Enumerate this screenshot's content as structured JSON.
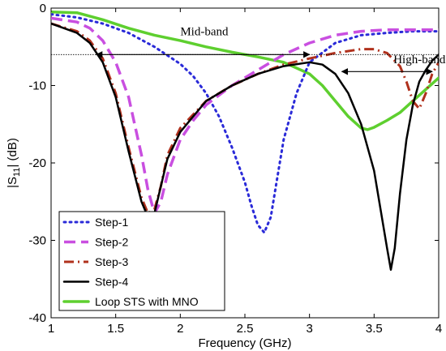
{
  "chart_data": {
    "type": "line",
    "xlabel": "Frequency (GHz)",
    "ylabel_main": "|S",
    "ylabel_sub": "11",
    "ylabel_tail": "| (dB)",
    "xlim": [
      1,
      4
    ],
    "ylim": [
      -40,
      0
    ],
    "x_ticks": [
      1,
      1.5,
      2,
      2.5,
      3,
      3.5,
      4
    ],
    "x_tick_labels": [
      "1",
      "1.5",
      "2",
      "2.5",
      "3",
      "3.5",
      "4"
    ],
    "y_ticks": [
      0,
      -10,
      -20,
      -30,
      -40
    ],
    "y_tick_labels": [
      "0",
      "-10",
      "-20",
      "-30",
      "-40"
    ],
    "grid": false,
    "legend_position": "bottom-left",
    "reference_line_db": -6,
    "annotations": [
      {
        "text": "Mid-band",
        "x": 2.0,
        "y": -3.5,
        "arrow_from": [
          1.35,
          -6
        ],
        "arrow_to": [
          3.0,
          -6
        ]
      },
      {
        "text": "High-band",
        "x": 3.65,
        "y": -7.1,
        "arrow_from": [
          3.25,
          -8.2
        ],
        "arrow_to": [
          3.95,
          -8.2
        ]
      }
    ],
    "series": [
      {
        "name": "Step-1",
        "color": "#2a2ad8",
        "dash": "dotted",
        "x": [
          1.0,
          1.2,
          1.4,
          1.6,
          1.8,
          2.0,
          2.1,
          2.2,
          2.3,
          2.4,
          2.5,
          2.55,
          2.6,
          2.65,
          2.7,
          2.75,
          2.8,
          2.9,
          3.0,
          3.2,
          3.4,
          3.6,
          3.8,
          4.0
        ],
        "y": [
          -0.8,
          -1.2,
          -2.0,
          -3.2,
          -5.0,
          -7.2,
          -8.8,
          -11.0,
          -14.0,
          -18.0,
          -22.5,
          -25.5,
          -28.0,
          -29.0,
          -27.0,
          -22.0,
          -17.0,
          -11.0,
          -7.0,
          -4.5,
          -3.5,
          -3.2,
          -3.0,
          -3.0
        ]
      },
      {
        "name": "Step-2",
        "color": "#c94fe0",
        "dash": "dashed",
        "x": [
          1.0,
          1.2,
          1.3,
          1.4,
          1.5,
          1.6,
          1.7,
          1.75,
          1.8,
          1.85,
          1.9,
          2.0,
          2.1,
          2.2,
          2.4,
          2.6,
          2.8,
          3.0,
          3.2,
          3.4,
          3.6,
          3.8,
          4.0
        ],
        "y": [
          -1.3,
          -1.8,
          -2.6,
          -4.2,
          -7.0,
          -11.5,
          -19.0,
          -23.5,
          -26.5,
          -25.0,
          -21.5,
          -17.0,
          -14.5,
          -12.5,
          -10.0,
          -8.0,
          -6.0,
          -4.5,
          -3.5,
          -3.0,
          -2.8,
          -2.8,
          -2.8
        ]
      },
      {
        "name": "Step-3",
        "color": "#b0311d",
        "dash": "dashdot",
        "x": [
          1.0,
          1.2,
          1.3,
          1.4,
          1.5,
          1.6,
          1.7,
          1.75,
          1.8,
          1.85,
          1.9,
          2.0,
          2.2,
          2.4,
          2.6,
          2.8,
          3.0,
          3.2,
          3.4,
          3.5,
          3.6,
          3.7,
          3.75,
          3.8,
          3.85,
          3.9,
          3.95,
          4.0
        ],
        "y": [
          -2.0,
          -3.0,
          -4.2,
          -6.5,
          -11.0,
          -18.0,
          -24.5,
          -26.5,
          -26.0,
          -23.0,
          -19.0,
          -15.5,
          -12.0,
          -10.0,
          -8.5,
          -7.3,
          -6.5,
          -5.8,
          -5.3,
          -5.3,
          -5.8,
          -7.5,
          -9.5,
          -12.0,
          -13.0,
          -11.0,
          -8.5,
          -7.0
        ]
      },
      {
        "name": "Step-4",
        "color": "#000000",
        "dash": "solid",
        "x": [
          1.0,
          1.2,
          1.3,
          1.4,
          1.5,
          1.6,
          1.7,
          1.75,
          1.8,
          1.85,
          1.9,
          2.0,
          2.2,
          2.4,
          2.6,
          2.8,
          3.0,
          3.1,
          3.2,
          3.3,
          3.4,
          3.5,
          3.55,
          3.6,
          3.63,
          3.66,
          3.7,
          3.75,
          3.8,
          3.85,
          3.9,
          3.95,
          4.0
        ],
        "y": [
          -2.0,
          -3.2,
          -4.5,
          -7.0,
          -11.5,
          -18.5,
          -25.0,
          -27.0,
          -26.5,
          -23.0,
          -19.5,
          -16.0,
          -12.0,
          -10.0,
          -8.5,
          -7.5,
          -7.0,
          -7.3,
          -8.5,
          -11.0,
          -15.0,
          -21.0,
          -26.0,
          -31.0,
          -33.8,
          -31.0,
          -24.0,
          -17.0,
          -12.5,
          -9.5,
          -8.0,
          -6.8,
          -6.0
        ]
      },
      {
        "name": "Loop STS with MNO",
        "color": "#5ecf2f",
        "dash": "solid",
        "x": [
          1.0,
          1.2,
          1.4,
          1.6,
          1.8,
          2.0,
          2.2,
          2.4,
          2.6,
          2.8,
          3.0,
          3.1,
          3.2,
          3.3,
          3.4,
          3.45,
          3.5,
          3.6,
          3.7,
          3.8,
          3.9,
          4.0
        ],
        "y": [
          -0.5,
          -0.6,
          -1.5,
          -2.6,
          -3.5,
          -4.2,
          -5.0,
          -5.7,
          -6.3,
          -7.0,
          -8.5,
          -10.0,
          -12.0,
          -14.0,
          -15.5,
          -15.7,
          -15.4,
          -14.5,
          -13.5,
          -12.0,
          -10.5,
          -9.0
        ]
      }
    ]
  }
}
